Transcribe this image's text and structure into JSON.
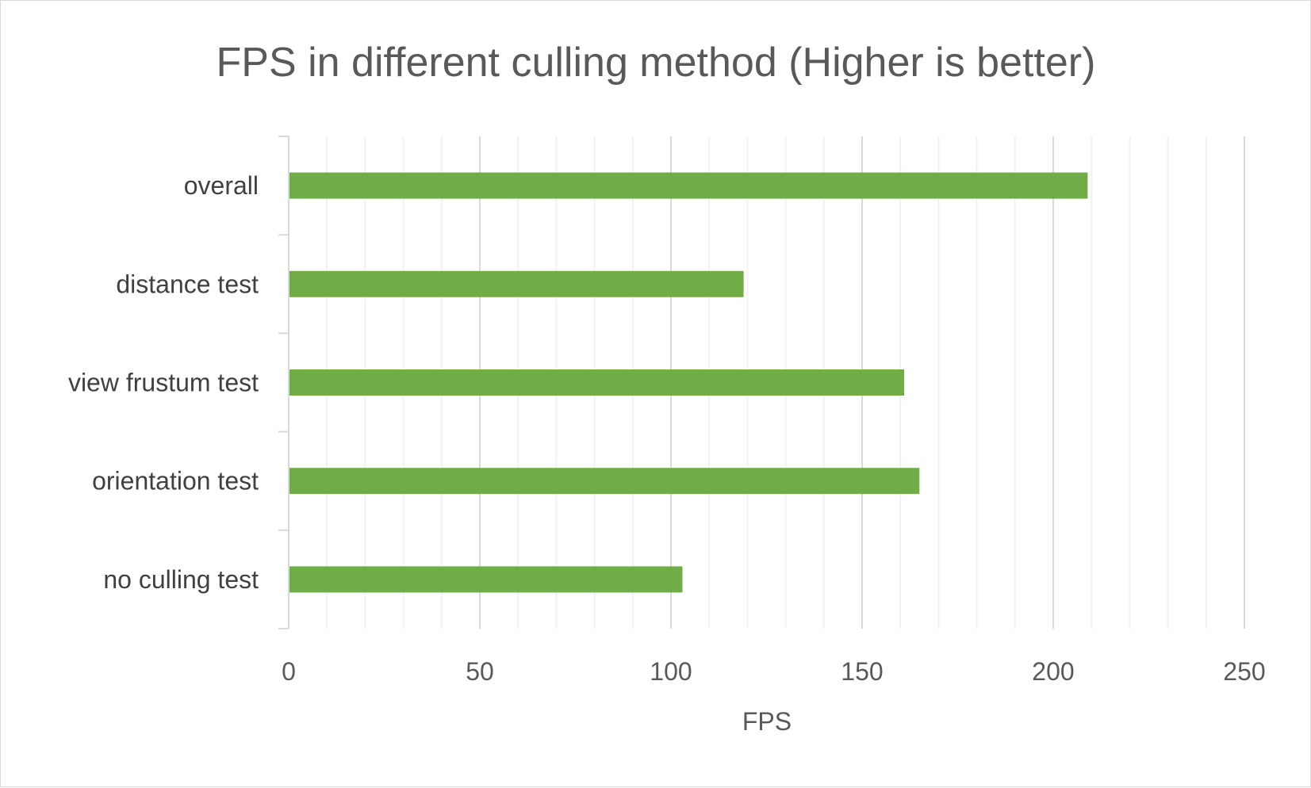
{
  "chart_data": {
    "type": "bar",
    "orientation": "horizontal",
    "title": "FPS in different culling method (Higher is better)",
    "xlabel": "FPS",
    "ylabel": "",
    "categories": [
      "overall",
      "distance test",
      "view frustum test",
      "orientation test",
      "no culling test"
    ],
    "values": [
      209,
      119,
      161,
      165,
      103
    ],
    "xlim": [
      0,
      250
    ],
    "x_ticks": [
      0,
      50,
      100,
      150,
      200,
      250
    ],
    "x_minor_step": 10,
    "grid": true,
    "legend": "none",
    "bar_color": "#70ad47"
  }
}
